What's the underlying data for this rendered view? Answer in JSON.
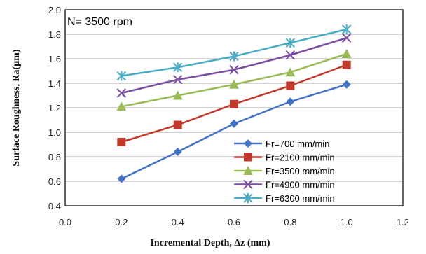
{
  "chart_data": {
    "type": "line",
    "annotation": "N= 3500 rpm",
    "xlabel": "Incremental Depth,  Δz (mm)",
    "ylabel": "Surface Roughness, Ra(µm)",
    "xlim": [
      0.0,
      1.2
    ],
    "ylim": [
      0.4,
      2.0
    ],
    "xticks": [
      "0.0",
      "0.2",
      "0.4",
      "0.6",
      "0.8",
      "1.0",
      "1.2"
    ],
    "yticks": [
      "0.4",
      "0.6",
      "0.8",
      "1.0",
      "1.2",
      "1.4",
      "1.6",
      "1.8",
      "2.0"
    ],
    "grid": "horizontal",
    "legend_position": "bottom-right",
    "x": [
      0.2,
      0.4,
      0.6,
      0.8,
      1.0
    ],
    "series": [
      {
        "name": "Fr=700 mm/min",
        "values": [
          0.62,
          0.84,
          1.07,
          1.25,
          1.39
        ],
        "color": "#4472c4",
        "marker": "diamond"
      },
      {
        "name": "Fr=2100 mm/min",
        "values": [
          0.92,
          1.06,
          1.23,
          1.38,
          1.55
        ],
        "color": "#c0392b",
        "marker": "square"
      },
      {
        "name": "Fr=3500 mm/min",
        "values": [
          1.21,
          1.3,
          1.39,
          1.49,
          1.64
        ],
        "color": "#9bbb59",
        "marker": "triangle"
      },
      {
        "name": "Fr=4900 mm/min",
        "values": [
          1.32,
          1.43,
          1.51,
          1.63,
          1.77
        ],
        "color": "#7b4fa0",
        "marker": "x"
      },
      {
        "name": "Fr=6300 mm/min",
        "values": [
          1.46,
          1.53,
          1.62,
          1.73,
          1.84
        ],
        "color": "#4bacc6",
        "marker": "star"
      }
    ]
  }
}
